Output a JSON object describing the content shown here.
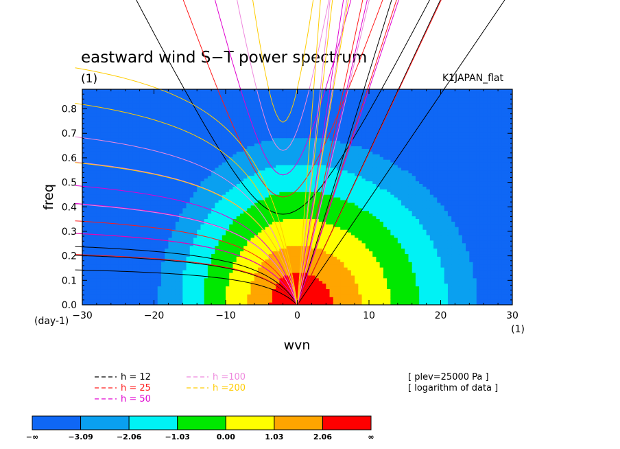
{
  "chart_data": {
    "type": "heatmap",
    "title": "eastward wind S−T power spectrum",
    "title_units": "(1)",
    "experiment": "K1JAPAN_flat",
    "xlabel": "wvn",
    "ylabel": "freq",
    "x_units": "(1)",
    "y_units": "(day-1)",
    "xlim": [
      -30,
      30
    ],
    "ylim": [
      0,
      0.88
    ],
    "xticks": [
      -30,
      -20,
      -10,
      0,
      10,
      20,
      30
    ],
    "yticks": [
      0.0,
      0.1,
      0.2,
      0.3,
      0.4,
      0.5,
      0.6,
      0.7,
      0.8
    ],
    "fill_field": {
      "description": "log power, peak at wvn 0 freq 0, broader toward positive wvn",
      "peak": 3.3,
      "decay_x_neg": 0.22,
      "decay_x_pos": 0.17,
      "decay_y": 6.2,
      "tilt": 1.5
    },
    "colorbar": {
      "labels": [
        "−∞",
        "−3.09",
        "−2.06",
        "−1.03",
        "0.00",
        "1.03",
        "2.06",
        "∞"
      ],
      "colors": [
        "#0f67f5",
        "#0aa0f0",
        "#00f2f5",
        "#00e800",
        "#ffff00",
        "#ffa500",
        "#ff0000"
      ],
      "bounds": [
        -3.09,
        -2.06,
        -1.03,
        0.0,
        1.03,
        2.06
      ]
    },
    "annotations": [
      "[ plev=25000 Pa ]",
      "[ logarithm of data ]"
    ],
    "dispersion_legend": [
      {
        "label": "h = 12",
        "color": "#000000"
      },
      {
        "label": "h = 25",
        "color": "#ff1a1a"
      },
      {
        "label": "h = 50",
        "color": "#e000d0"
      },
      {
        "label": "h =100",
        "color": "#ee88dd"
      },
      {
        "label": "h =200",
        "color": "#ffcc00"
      }
    ],
    "dispersion_curves": [
      {
        "h": 12,
        "color": "#000000",
        "kelvin_speed": 0.043,
        "n1_min_freq": 0.37
      },
      {
        "h": 25,
        "color": "#ff1a1a",
        "kelvin_speed": 0.062,
        "n1_min_freq": 0.44
      },
      {
        "h": 50,
        "color": "#e000d0",
        "kelvin_speed": 0.088,
        "n1_min_freq": 0.53
      },
      {
        "h": 100,
        "color": "#ee88dd",
        "kelvin_speed": 0.124,
        "n1_min_freq": 0.63
      },
      {
        "h": 200,
        "color": "#ffcc00",
        "kelvin_speed": 0.175,
        "n1_min_freq": 0.745
      }
    ]
  }
}
